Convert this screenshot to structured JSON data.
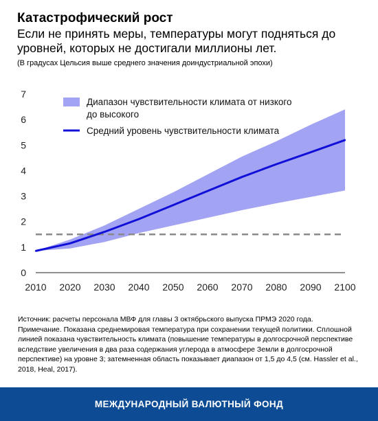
{
  "header": {
    "title": "Катастрофический рост",
    "subtitle": "Если не принять меры, температуры могут подняться до уровней, которых не достигали миллионы лет.",
    "unit_note": "(В градусах Цельсия выше среднего значения доиндустриальной эпохи)"
  },
  "chart_data": {
    "type": "area",
    "x": [
      2010,
      2020,
      2030,
      2040,
      2050,
      2060,
      2070,
      2080,
      2090,
      2100
    ],
    "series": [
      {
        "name": "Средний уровень чувствительности климата",
        "kind": "line",
        "color": "#1010d8",
        "values": [
          0.85,
          1.15,
          1.6,
          2.1,
          2.65,
          3.2,
          3.75,
          4.25,
          4.72,
          5.2
        ]
      },
      {
        "name": "Диапазон чувствительности климата от низкого до высокого",
        "kind": "band",
        "color": "#a3a3f3",
        "lower": [
          0.85,
          0.95,
          1.2,
          1.55,
          1.85,
          2.15,
          2.45,
          2.72,
          2.97,
          3.22
        ],
        "upper": [
          0.85,
          1.3,
          1.85,
          2.5,
          3.15,
          3.85,
          4.55,
          5.15,
          5.8,
          6.4
        ]
      }
    ],
    "reference_line": {
      "y": 1.5,
      "style": "dashed",
      "color": "#8a8a8a"
    },
    "yticks": [
      "0",
      "1",
      "2",
      "3",
      "4",
      "5",
      "6",
      "7"
    ],
    "xticks": [
      "2010",
      "2020",
      "2030",
      "2040",
      "2050",
      "2060",
      "2070",
      "2080",
      "2090",
      "2100"
    ],
    "ylim": [
      0,
      7
    ],
    "xlim": [
      2010,
      2100
    ],
    "grid": false,
    "legend_position": "top-left",
    "legend": [
      {
        "type": "band",
        "lines": [
          "Диапазон чувствительности климата от низкого",
          "до высокого"
        ]
      },
      {
        "type": "line",
        "lines": [
          "Средний уровень чувствительности климата"
        ]
      }
    ]
  },
  "footnotes": [
    "Источник: расчеты персонала МВФ для главы 3 октябрьского выпуска ПРМЭ 2020 года.",
    "Примечание. Показана среднемировая температура при сохранении текущей политики. Сплошной линией показана чувствительность климата (повышение температуры в долгосрочной перспективе вследствие увеличения в два раза содержания углерода в атмосфере Земли в долгосрочной перспективе) на уровне 3; затемненная область показывает диапазон от 1,5 до 4,5 (см. Hassler et al., 2018, Heal, 2017)."
  ],
  "footer": {
    "org_name": "МЕЖДУНАРОДНЫЙ ВАЛЮТНЫЙ ФОНД"
  }
}
